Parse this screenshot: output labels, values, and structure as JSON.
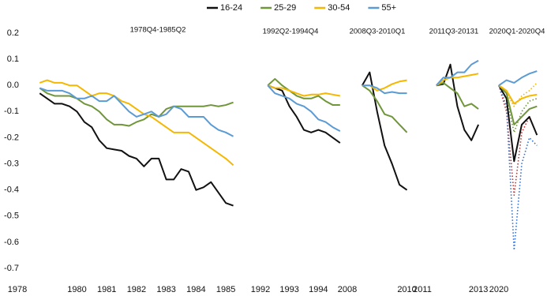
{
  "chart_data": [
    {
      "type": "line",
      "title": "1978Q4-1985Q2",
      "x": [
        1978.75,
        1979,
        1979.25,
        1979.5,
        1979.75,
        1980,
        1980.25,
        1980.5,
        1980.75,
        1981,
        1981.25,
        1981.5,
        1981.75,
        1982,
        1982.25,
        1982.5,
        1982.75,
        1983,
        1983.25,
        1983.5,
        1983.75,
        1984,
        1984.25,
        1984.5,
        1984.75,
        1985,
        1985.25
      ],
      "xlim": [
        1978,
        1985.5
      ],
      "xticks": [
        1978,
        1980,
        1981,
        1982,
        1983,
        1984,
        1985
      ],
      "ylim": [
        -0.7,
        0.2
      ],
      "yticks": [
        0.2,
        0.1,
        {
          "value": 0,
          "label": "0.0"
        },
        -0.1,
        -0.2,
        -0.3,
        -0.4,
        -0.5,
        -0.6,
        -0.7
      ],
      "series": [
        {
          "name": "16-24",
          "color": "#111111",
          "values": [
            -0.03,
            -0.05,
            -0.07,
            -0.07,
            -0.08,
            -0.1,
            -0.14,
            -0.16,
            -0.21,
            -0.24,
            -0.245,
            -0.25,
            -0.27,
            -0.28,
            -0.31,
            -0.28,
            -0.28,
            -0.36,
            -0.36,
            -0.32,
            -0.33,
            -0.4,
            -0.39,
            -0.37,
            -0.41,
            -0.45,
            -0.46
          ]
        },
        {
          "name": "25-29",
          "color": "#70963a",
          "values": [
            -0.01,
            -0.03,
            -0.04,
            -0.04,
            -0.04,
            -0.05,
            -0.07,
            -0.08,
            -0.1,
            -0.13,
            -0.15,
            -0.15,
            -0.155,
            -0.14,
            -0.13,
            -0.11,
            -0.12,
            -0.09,
            -0.08,
            -0.08,
            -0.08,
            -0.08,
            -0.08,
            -0.075,
            -0.08,
            -0.075,
            -0.065
          ]
        },
        {
          "name": "30-54",
          "color": "#f5b700",
          "values": [
            0.01,
            0.02,
            0.01,
            0.01,
            0,
            0,
            -0.02,
            -0.04,
            -0.03,
            -0.03,
            -0.04,
            -0.06,
            -0.07,
            -0.09,
            -0.11,
            -0.12,
            -0.14,
            -0.16,
            -0.18,
            -0.18,
            -0.18,
            -0.2,
            -0.22,
            -0.24,
            -0.26,
            -0.28,
            -0.305
          ]
        },
        {
          "name": "55+",
          "color": "#5b9bd5",
          "values": [
            -0.01,
            -0.02,
            -0.02,
            -0.02,
            -0.03,
            -0.05,
            -0.05,
            -0.04,
            -0.06,
            -0.06,
            -0.04,
            -0.07,
            -0.1,
            -0.12,
            -0.11,
            -0.1,
            -0.12,
            -0.11,
            -0.08,
            -0.09,
            -0.12,
            -0.12,
            -0.12,
            -0.15,
            -0.17,
            -0.18,
            -0.195
          ]
        }
      ]
    },
    {
      "type": "line",
      "title": "1992Q2-1994Q4",
      "x": [
        1992.25,
        1992.5,
        1992.75,
        1993,
        1993.25,
        1993.5,
        1993.75,
        1994,
        1994.25,
        1994.5,
        1994.75
      ],
      "xlim": [
        1992,
        1995
      ],
      "xticks": [
        1992,
        1993,
        1994
      ],
      "ylim": [
        -0.7,
        0.2
      ],
      "series": [
        {
          "name": "16-24",
          "color": "#111111",
          "values": [
            0,
            -0.01,
            -0.02,
            -0.08,
            -0.12,
            -0.17,
            -0.18,
            -0.17,
            -0.18,
            -0.2,
            -0.22
          ]
        },
        {
          "name": "25-29",
          "color": "#70963a",
          "values": [
            0,
            0.025,
            0,
            -0.02,
            -0.04,
            -0.05,
            -0.05,
            -0.04,
            -0.06,
            -0.075,
            -0.075
          ]
        },
        {
          "name": "30-54",
          "color": "#f5b700",
          "values": [
            0,
            -0.01,
            -0.01,
            -0.02,
            -0.03,
            -0.04,
            -0.035,
            -0.035,
            -0.03,
            -0.035,
            -0.04
          ]
        },
        {
          "name": "55+",
          "color": "#5b9bd5",
          "values": [
            0,
            -0.03,
            -0.04,
            -0.05,
            -0.07,
            -0.08,
            -0.1,
            -0.13,
            -0.14,
            -0.16,
            -0.175
          ]
        }
      ]
    },
    {
      "type": "line",
      "title": "2008Q3-2010Q1",
      "x": [
        2008.5,
        2008.75,
        2009,
        2009.25,
        2009.5,
        2009.75,
        2010
      ],
      "xlim": [
        2008,
        2010.25
      ],
      "xticks": [
        2008,
        2010
      ],
      "ylim": [
        -0.7,
        0.2
      ],
      "series": [
        {
          "name": "16-24",
          "color": "#111111",
          "values": [
            0,
            0.05,
            -0.1,
            -0.23,
            -0.3,
            -0.38,
            -0.4
          ]
        },
        {
          "name": "25-29",
          "color": "#70963a",
          "values": [
            0,
            -0.02,
            -0.06,
            -0.11,
            -0.12,
            -0.15,
            -0.18
          ]
        },
        {
          "name": "30-54",
          "color": "#f5b700",
          "values": [
            0,
            0,
            -0.02,
            -0.01,
            0.005,
            0.015,
            0.02
          ]
        },
        {
          "name": "55+",
          "color": "#5b9bd5",
          "values": [
            0,
            0,
            -0.01,
            -0.03,
            -0.025,
            -0.03,
            -0.03
          ]
        }
      ]
    },
    {
      "type": "line",
      "title": "2011Q3-20131",
      "x": [
        2011.5,
        2011.75,
        2012,
        2012.25,
        2012.5,
        2012.75,
        2013
      ],
      "xlim": [
        2011,
        2013.25
      ],
      "xticks": [
        2011,
        2013
      ],
      "ylim": [
        -0.7,
        0.2
      ],
      "series": [
        {
          "name": "16-24",
          "color": "#111111",
          "values": [
            0,
            0.005,
            0.08,
            -0.08,
            -0.17,
            -0.21,
            -0.15
          ]
        },
        {
          "name": "25-29",
          "color": "#70963a",
          "values": [
            0,
            0.01,
            -0.01,
            -0.03,
            -0.08,
            -0.07,
            -0.09
          ]
        },
        {
          "name": "30-54",
          "color": "#f5b700",
          "values": [
            0,
            0.02,
            0.03,
            0.03,
            0.035,
            0.04,
            0.045
          ]
        },
        {
          "name": "55+",
          "color": "#5b9bd5",
          "values": [
            0,
            0.03,
            0.03,
            0.05,
            0.05,
            0.08,
            0.095
          ]
        }
      ]
    },
    {
      "type": "line",
      "title": "2020Q1-2020Q4",
      "x": [
        2020,
        2020.25,
        2020.5,
        2020.75,
        2021,
        2021.25
      ],
      "xlim": [
        2020,
        2021.5
      ],
      "xticks": [
        2020
      ],
      "ylim": [
        -0.7,
        0.2
      ],
      "series": [
        {
          "color": "#d62728",
          "dashed": true,
          "values": [
            0,
            -0.1,
            -0.42,
            -0.18,
            -0.12,
            null
          ]
        },
        {
          "color": "#2f6fd0",
          "dashed": true,
          "values": [
            0,
            -0.08,
            -0.63,
            -0.3,
            -0.2,
            -0.23
          ]
        },
        {
          "color": "#70963a",
          "dashed": true,
          "values": [
            0,
            -0.05,
            -0.18,
            -0.1,
            -0.06,
            -0.05
          ]
        },
        {
          "color": "#f5b700",
          "dashed": true,
          "values": [
            0,
            -0.03,
            -0.08,
            -0.04,
            -0.02,
            0.01
          ]
        },
        {
          "name": "16-24",
          "color": "#111111",
          "values": [
            0,
            -0.05,
            -0.29,
            -0.15,
            -0.12,
            -0.19
          ]
        },
        {
          "name": "25-29",
          "color": "#70963a",
          "values": [
            0,
            -0.03,
            -0.15,
            -0.12,
            -0.09,
            -0.08
          ]
        },
        {
          "name": "30-54",
          "color": "#f5b700",
          "values": [
            0,
            -0.02,
            -0.07,
            -0.05,
            -0.04,
            -0.035
          ]
        },
        {
          "name": "55+",
          "color": "#5b9bd5",
          "values": [
            0,
            0.02,
            0.01,
            0.03,
            0.045,
            0.055
          ]
        }
      ]
    }
  ]
}
